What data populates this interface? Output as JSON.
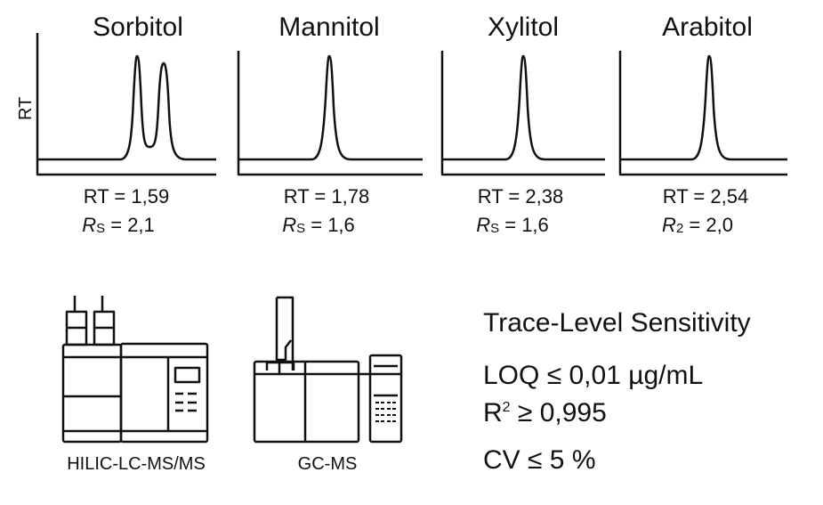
{
  "y_axis_label": "RT",
  "panels": [
    {
      "title": "Sorbitol",
      "rt": "RT = 1,59",
      "rs_sym": "R",
      "rs_sub": "S",
      "rs_val": " = 2,1"
    },
    {
      "title": "Mannitol",
      "rt": "RT = 1,78",
      "rs_sym": "R",
      "rs_sub": "S",
      "rs_val": " = 1,6"
    },
    {
      "title": "Xylitol",
      "rt": "RT = 2,38",
      "rs_sym": "R",
      "rs_sub": "S",
      "rs_val": " = 1,6"
    },
    {
      "title": "Arabitol",
      "rt": "RT = 2,54",
      "rs_sym": "R",
      "rs_sub": "2",
      "rs_val": " = 2,0"
    }
  ],
  "instruments": [
    {
      "label": "HILIC-LC-MS/MS"
    },
    {
      "label": "GC-MS"
    }
  ],
  "sensitivity": {
    "heading": "Trace-Level Sensitivity",
    "loq": "LOQ ≤ 0,01 µg/mL",
    "r2_base": "R",
    "r2_sup": "2",
    "r2_val": " ≥ 0,995",
    "cv": "CV ≤ 5 %"
  }
}
